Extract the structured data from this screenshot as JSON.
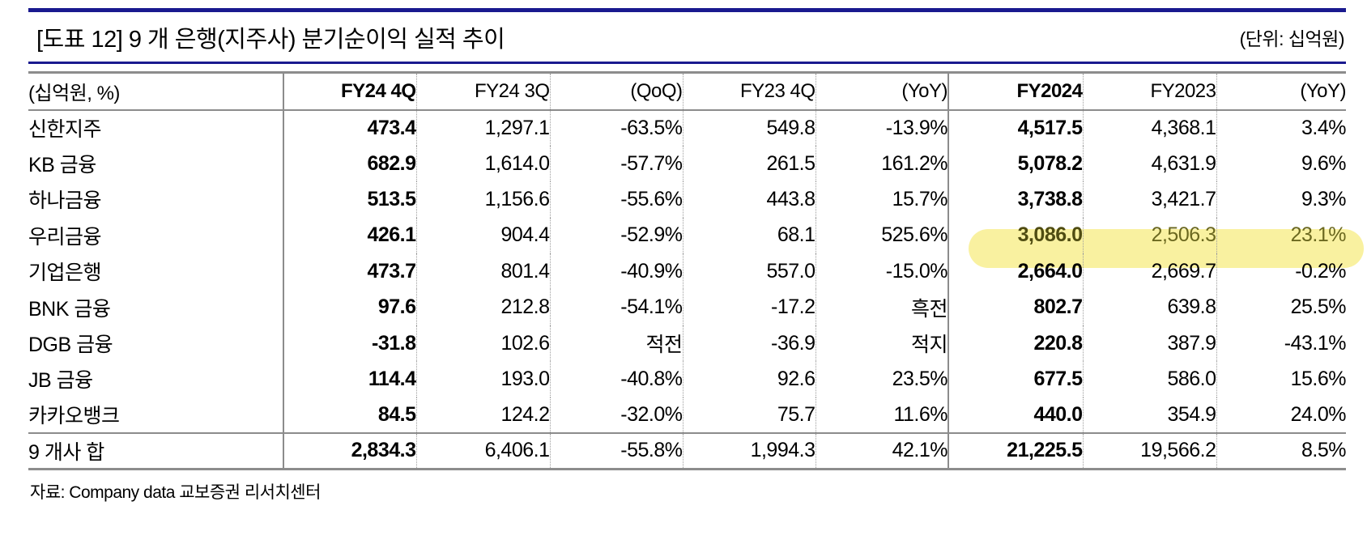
{
  "title": "[도표 12] 9 개 은행(지주사) 분기순이익 실적 추이",
  "unit_note": "(단위: 십억원)",
  "source": "자료: Company data 교보증권 리서치센터",
  "colors": {
    "accent_navy": "#1a1a8f",
    "header_bg": "#d9d9d9",
    "solid_border": "#8c8c8c",
    "dotted_border": "#9e9e9e",
    "highlight_fill": "#f9f1a0",
    "highlight_text": "#6b681f"
  },
  "table": {
    "columns": [
      "(십억원, %)",
      "FY24 4Q",
      "FY24 3Q",
      "(QoQ)",
      "FY23 4Q",
      "(YoY)",
      "FY2024",
      "FY2023",
      "(YoY)"
    ],
    "rows": [
      {
        "label": "신한지주",
        "values": [
          "473.4",
          "1,297.1",
          "-63.5%",
          "549.8",
          "-13.9%",
          "4,517.5",
          "4,368.1",
          "3.4%"
        ],
        "highlight": false
      },
      {
        "label": "KB 금융",
        "values": [
          "682.9",
          "1,614.0",
          "-57.7%",
          "261.5",
          "161.2%",
          "5,078.2",
          "4,631.9",
          "9.6%"
        ],
        "highlight": false
      },
      {
        "label": "하나금융",
        "values": [
          "513.5",
          "1,156.6",
          "-55.6%",
          "443.8",
          "15.7%",
          "3,738.8",
          "3,421.7",
          "9.3%"
        ],
        "highlight": false
      },
      {
        "label": "우리금융",
        "values": [
          "426.1",
          "904.4",
          "-52.9%",
          "68.1",
          "525.6%",
          "3,086.0",
          "2,506.3",
          "23.1%"
        ],
        "highlight": true
      },
      {
        "label": "기업은행",
        "values": [
          "473.7",
          "801.4",
          "-40.9%",
          "557.0",
          "-15.0%",
          "2,664.0",
          "2,669.7",
          "-0.2%"
        ],
        "highlight": false
      },
      {
        "label": "BNK 금융",
        "values": [
          "97.6",
          "212.8",
          "-54.1%",
          "-17.2",
          "흑전",
          "802.7",
          "639.8",
          "25.5%"
        ],
        "highlight": false
      },
      {
        "label": "DGB 금융",
        "values": [
          "-31.8",
          "102.6",
          "적전",
          "-36.9",
          "적지",
          "220.8",
          "387.9",
          "-43.1%"
        ],
        "highlight": false
      },
      {
        "label": "JB 금융",
        "values": [
          "114.4",
          "193.0",
          "-40.8%",
          "92.6",
          "23.5%",
          "677.5",
          "586.0",
          "15.6%"
        ],
        "highlight": false
      },
      {
        "label": "카카오뱅크",
        "values": [
          "84.5",
          "124.2",
          "-32.0%",
          "75.7",
          "11.6%",
          "440.0",
          "354.9",
          "24.0%"
        ],
        "highlight": false
      }
    ],
    "total_row": {
      "label": "9 개사 합",
      "values": [
        "2,834.3",
        "6,406.1",
        "-55.8%",
        "1,994.3",
        "42.1%",
        "21,225.5",
        "19,566.2",
        "8.5%"
      ]
    }
  }
}
